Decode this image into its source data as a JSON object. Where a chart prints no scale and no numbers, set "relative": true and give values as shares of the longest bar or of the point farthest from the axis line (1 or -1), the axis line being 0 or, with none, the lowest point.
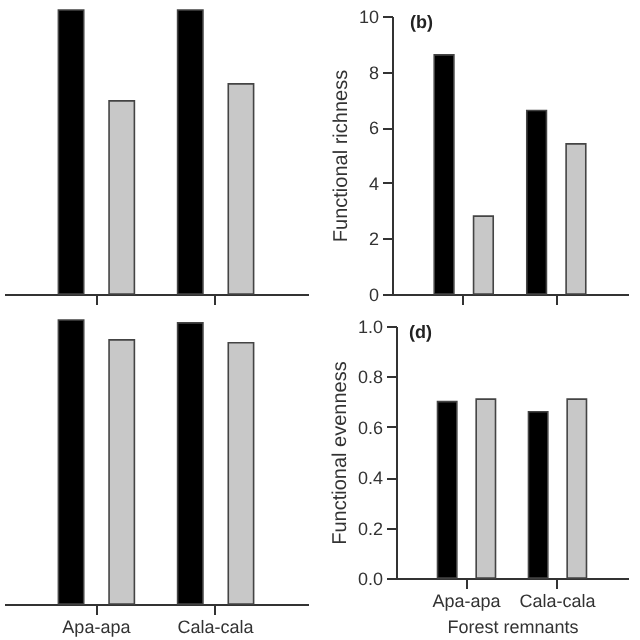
{
  "chart_data": [
    {
      "type": "bar",
      "relative": true,
      "categories": [
        null,
        null
      ],
      "tick_labels": false,
      "series": [
        {
          "color": "#000000",
          "values": [
            1.0,
            1.0
          ]
        },
        {
          "color": "#c8c8c8",
          "values": [
            0.68,
            0.74
          ]
        }
      ]
    },
    {
      "type": "bar",
      "title": "(b)",
      "ylabel": "Functional richness",
      "categories": [
        null,
        null
      ],
      "tick_labels": "y",
      "ylim": [
        0,
        10
      ],
      "yticks": [
        0,
        2,
        4,
        6,
        8,
        10
      ],
      "series": [
        {
          "color": "#000000",
          "values": [
            8.6,
            6.6
          ]
        },
        {
          "color": "#c8c8c8",
          "values": [
            2.8,
            5.4
          ]
        }
      ]
    },
    {
      "type": "bar",
      "relative": true,
      "categories": [
        "Apa-apa",
        "Cala-cala"
      ],
      "tick_labels": "x",
      "series": [
        {
          "color": "#000000",
          "values": [
            1.0,
            0.99
          ]
        },
        {
          "color": "#c8c8c8",
          "values": [
            0.93,
            0.92
          ]
        }
      ]
    },
    {
      "type": "bar",
      "title": "(d)",
      "xlabel": "Forest remnants",
      "ylabel": "Functional evenness",
      "categories": [
        "Apa-apa",
        "Cala-cala"
      ],
      "ylim": [
        0,
        1
      ],
      "yticks": [
        {
          "value": 0,
          "label": "0.0"
        },
        0.2,
        0.4,
        0.6,
        0.8,
        {
          "value": 1,
          "label": "1.0"
        }
      ],
      "series": [
        {
          "color": "#000000",
          "values": [
            0.7,
            0.66
          ]
        },
        {
          "color": "#c8c8c8",
          "values": [
            0.71,
            0.71
          ]
        }
      ]
    }
  ]
}
